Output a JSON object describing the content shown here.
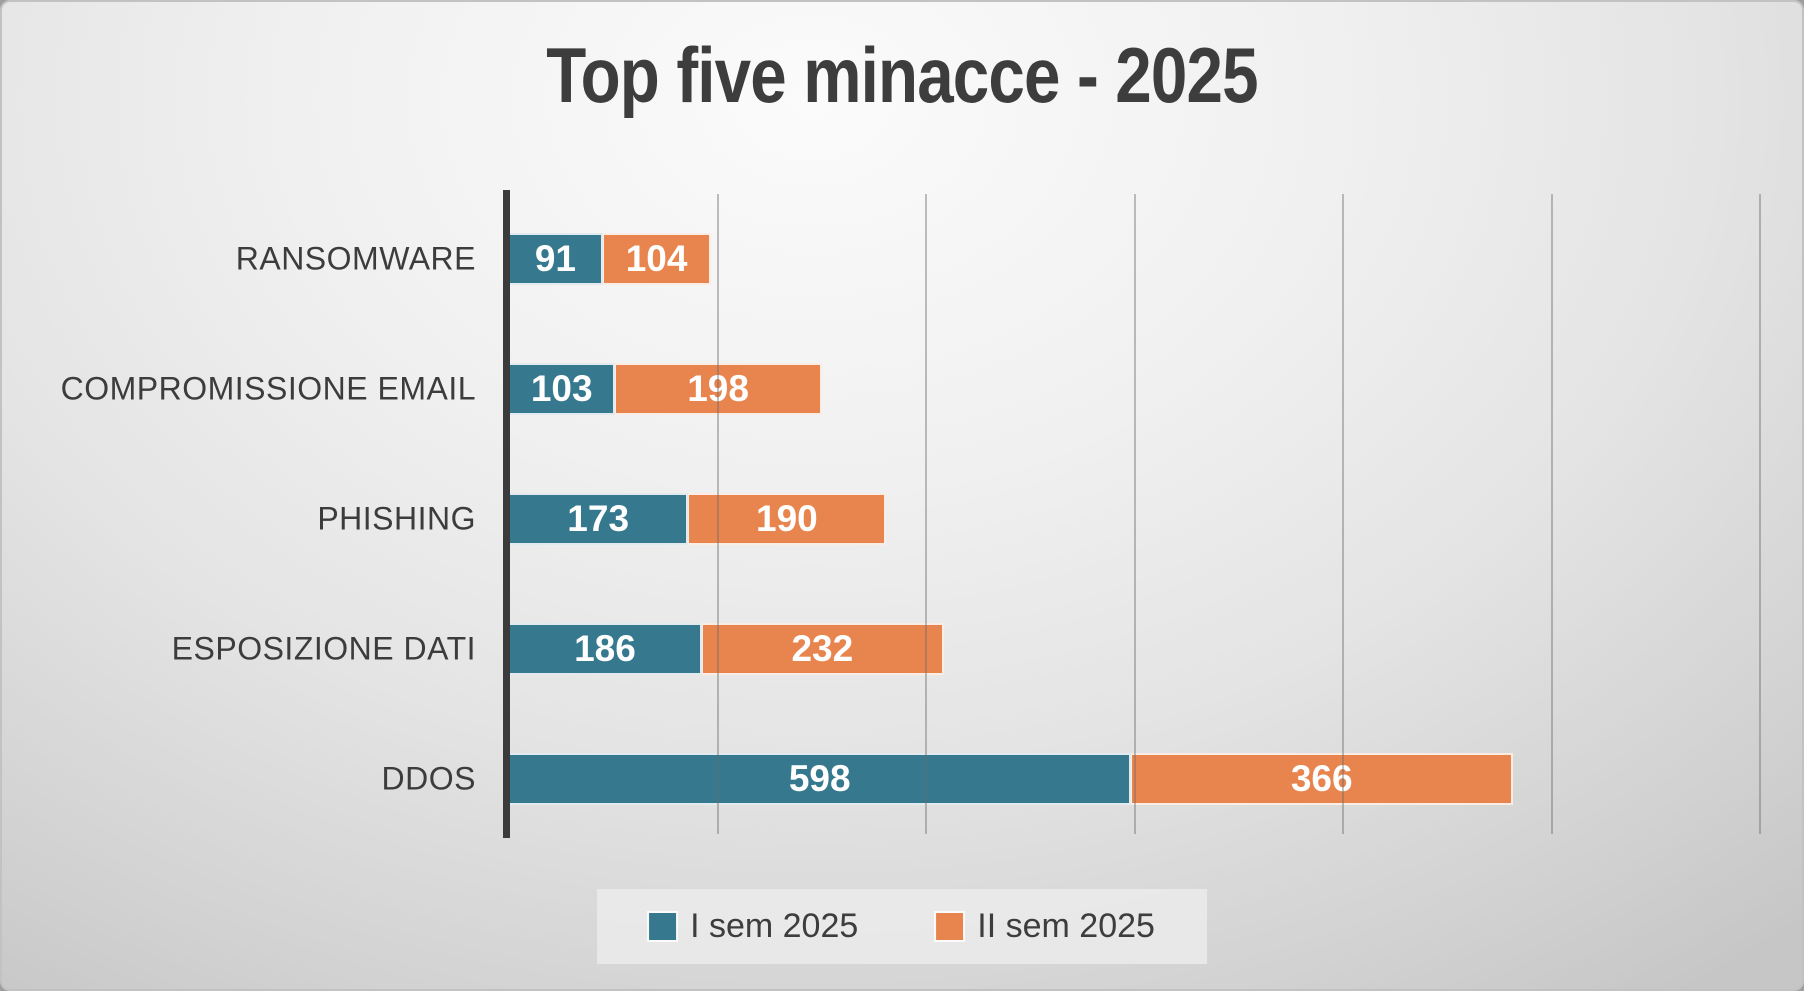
{
  "chart_data": {
    "type": "bar",
    "orientation": "horizontal",
    "stacked": true,
    "title": "Top five minacce - 2025",
    "categories": [
      "RANSOMWARE",
      "COMPROMISSIONE EMAIL",
      "PHISHING",
      "ESPOSIZIONE DATI",
      "DDOS"
    ],
    "series": [
      {
        "name": "I sem 2025",
        "color": "#36798f",
        "values": [
          91,
          103,
          173,
          186,
          598
        ]
      },
      {
        "name": "II sem 2025",
        "color": "#e8854e",
        "values": [
          104,
          198,
          190,
          232,
          366
        ]
      }
    ],
    "xlim": [
      0,
      1200
    ],
    "grid_step": 200,
    "grid": "vertical-lines",
    "legend_position": "bottom-center",
    "value_labels": "white-inside-segments"
  },
  "colors": {
    "title_text": "#3d3d3d",
    "category_text": "#3c3c3c",
    "value_text": "#ffffff",
    "axis_line": "#3b3b3b",
    "gridline": "#6a6a6a",
    "legend_background": "#ebebeb",
    "series_1": "#36798f",
    "series_2": "#e8854e"
  }
}
